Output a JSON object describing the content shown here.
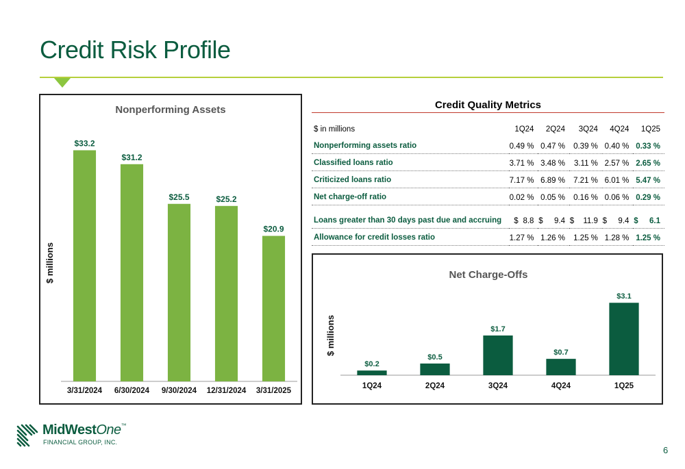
{
  "page": {
    "title": "Credit Risk Profile",
    "number": "6"
  },
  "metrics": {
    "title": "Credit Quality Metrics",
    "header_label": "$ in millions",
    "columns": [
      "1Q24",
      "2Q24",
      "3Q24",
      "4Q24",
      "1Q25"
    ],
    "rows": [
      {
        "label": "Nonperforming assets ratio",
        "values": [
          "0.49 %",
          "0.47 %",
          "0.39 %",
          "0.40 %",
          "0.33 %"
        ]
      },
      {
        "label": "Classified loans ratio",
        "values": [
          "3.71 %",
          "3.48 %",
          "3.11 %",
          "2.57 %",
          "2.65 %"
        ]
      },
      {
        "label": "Criticized loans ratio",
        "values": [
          "7.17 %",
          "6.89 %",
          "7.21 %",
          "6.01 %",
          "5.47 %"
        ]
      },
      {
        "label": "Net charge-off ratio",
        "values": [
          "0.02 %",
          "0.05 %",
          "0.16 %",
          "0.06 %",
          "0.29 %"
        ]
      },
      {
        "label": "Loans greater than 30 days past due and accruing",
        "currency": "$",
        "values": [
          "8.8",
          "9.4",
          "11.9",
          "9.4",
          "6.1"
        ]
      },
      {
        "label": "Allowance for credit losses ratio",
        "values": [
          "1.27 %",
          "1.26 %",
          "1.25 %",
          "1.28 %",
          "1.25 %"
        ]
      }
    ]
  },
  "chart_data": [
    {
      "type": "bar",
      "title": "Nonperforming Assets",
      "ylabel": "$ millions",
      "xlabel": "",
      "categories": [
        "3/31/2024",
        "6/30/2024",
        "9/30/2024",
        "12/31/2024",
        "3/31/2025"
      ],
      "values": [
        33.2,
        31.2,
        25.5,
        25.2,
        20.9
      ],
      "data_labels": [
        "$33.2",
        "$31.2",
        "$25.5",
        "$25.2",
        "$20.9"
      ],
      "ylim": [
        0,
        36
      ],
      "color": "#7cb342",
      "grid": false
    },
    {
      "type": "bar",
      "title": "Net Charge-Offs",
      "ylabel": "$ millions",
      "xlabel": "",
      "categories": [
        "1Q24",
        "2Q24",
        "3Q24",
        "4Q24",
        "1Q25"
      ],
      "values": [
        0.2,
        0.5,
        1.7,
        0.7,
        3.1
      ],
      "data_labels": [
        "$0.2",
        "$0.5",
        "$1.7",
        "$0.7",
        "$3.1"
      ],
      "ylim": [
        0,
        3.4
      ],
      "color": "#0b5c3f",
      "grid": false
    }
  ],
  "logo": {
    "name_a": "MidWest",
    "name_b": "One",
    "tm": "™",
    "subtitle": "FINANCIAL GROUP, INC."
  }
}
